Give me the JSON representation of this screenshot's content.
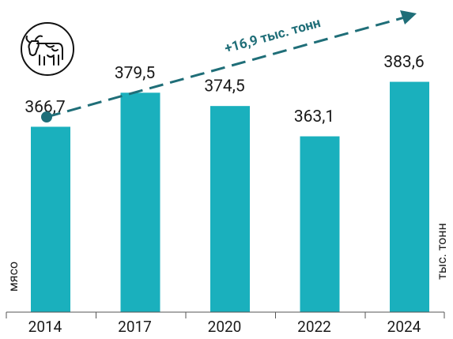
{
  "chart_data": {
    "type": "bar",
    "categories": [
      "2014",
      "2017",
      "2020",
      "2022",
      "2024"
    ],
    "values": [
      366.7,
      379.5,
      374.5,
      363.1,
      383.6
    ],
    "value_labels": [
      "366,7",
      "379,5",
      "374,5",
      "363,1",
      "383,6"
    ],
    "color": "#1ab0bd",
    "ylim": [
      297,
      390
    ],
    "annotation": "+16,9 тыс. тонн",
    "left_label": "мясо",
    "unit_label": "тыс. тонн"
  }
}
